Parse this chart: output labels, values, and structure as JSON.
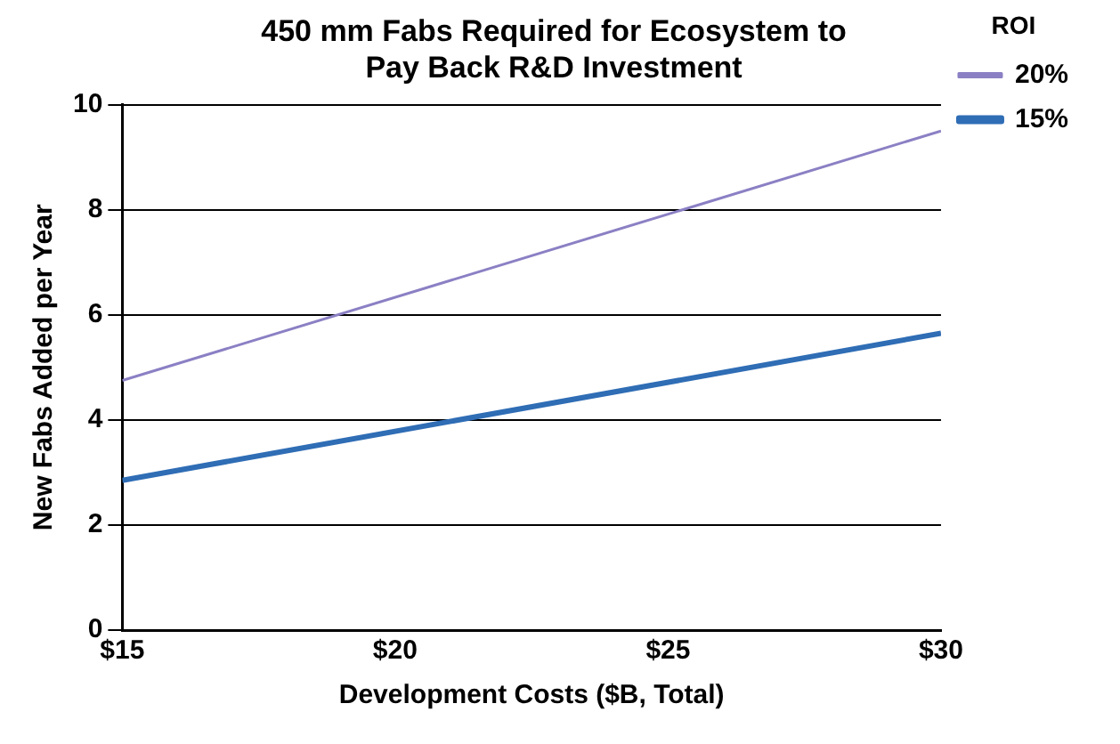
{
  "chart_data": {
    "type": "line",
    "title": "450 mm Fabs Required for Ecosystem to\nPay Back R&D Investment",
    "xlabel": "Development Costs ($B, Total)",
    "ylabel": "New Fabs Added per Year",
    "legend_title": "ROI",
    "x": [
      15,
      30
    ],
    "series": [
      {
        "name": "20%",
        "color": "#8b80c4",
        "values": [
          4.75,
          9.5
        ]
      },
      {
        "name": "15%",
        "color": "#2f6db5",
        "values": [
          2.85,
          5.65
        ]
      }
    ],
    "xlim": [
      15,
      30
    ],
    "xticks": [
      {
        "value": 15,
        "label": "$15"
      },
      {
        "value": 20,
        "label": "$20"
      },
      {
        "value": 25,
        "label": "$25"
      },
      {
        "value": 30,
        "label": "$30"
      }
    ],
    "ylim": [
      0,
      10
    ],
    "yticks": [
      0,
      2,
      4,
      6,
      8,
      10
    ],
    "grid": "y",
    "legend": "right",
    "marker": "none",
    "line_style": "solid"
  }
}
